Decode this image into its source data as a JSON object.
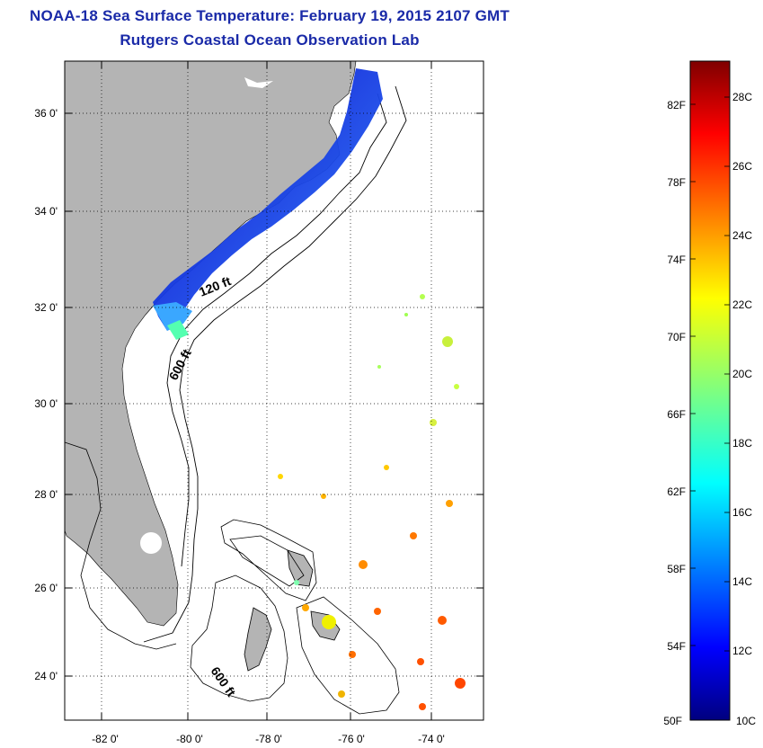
{
  "header": {
    "title": "NOAA-18 Sea Surface Temperature:  February 19, 2015 2107 GMT",
    "subtitle": "Rutgers Coastal Ocean Observation Lab"
  },
  "map": {
    "lon_ticks": [
      "-82 0'",
      "-80 0'",
      "-78 0'",
      "-76 0'",
      "-74 0'"
    ],
    "lat_ticks": [
      "36 0'",
      "34 0'",
      "32 0'",
      "30 0'",
      "28 0'",
      "26 0'",
      "24 0'"
    ],
    "depth_labels": [
      "120 ft",
      "600 ft",
      "600 ft"
    ],
    "land_color": "#b4b4b4",
    "grid": true
  },
  "colorbar": {
    "fahrenheit_labels": [
      "82F",
      "78F",
      "74F",
      "70F",
      "66F",
      "62F",
      "58F",
      "54F",
      "50F"
    ],
    "celsius_labels": [
      "28C",
      "26C",
      "24C",
      "22C",
      "20C",
      "18C",
      "16C",
      "14C",
      "12C",
      "10C"
    ],
    "colormap": "jet",
    "range_c": [
      10,
      29
    ]
  }
}
